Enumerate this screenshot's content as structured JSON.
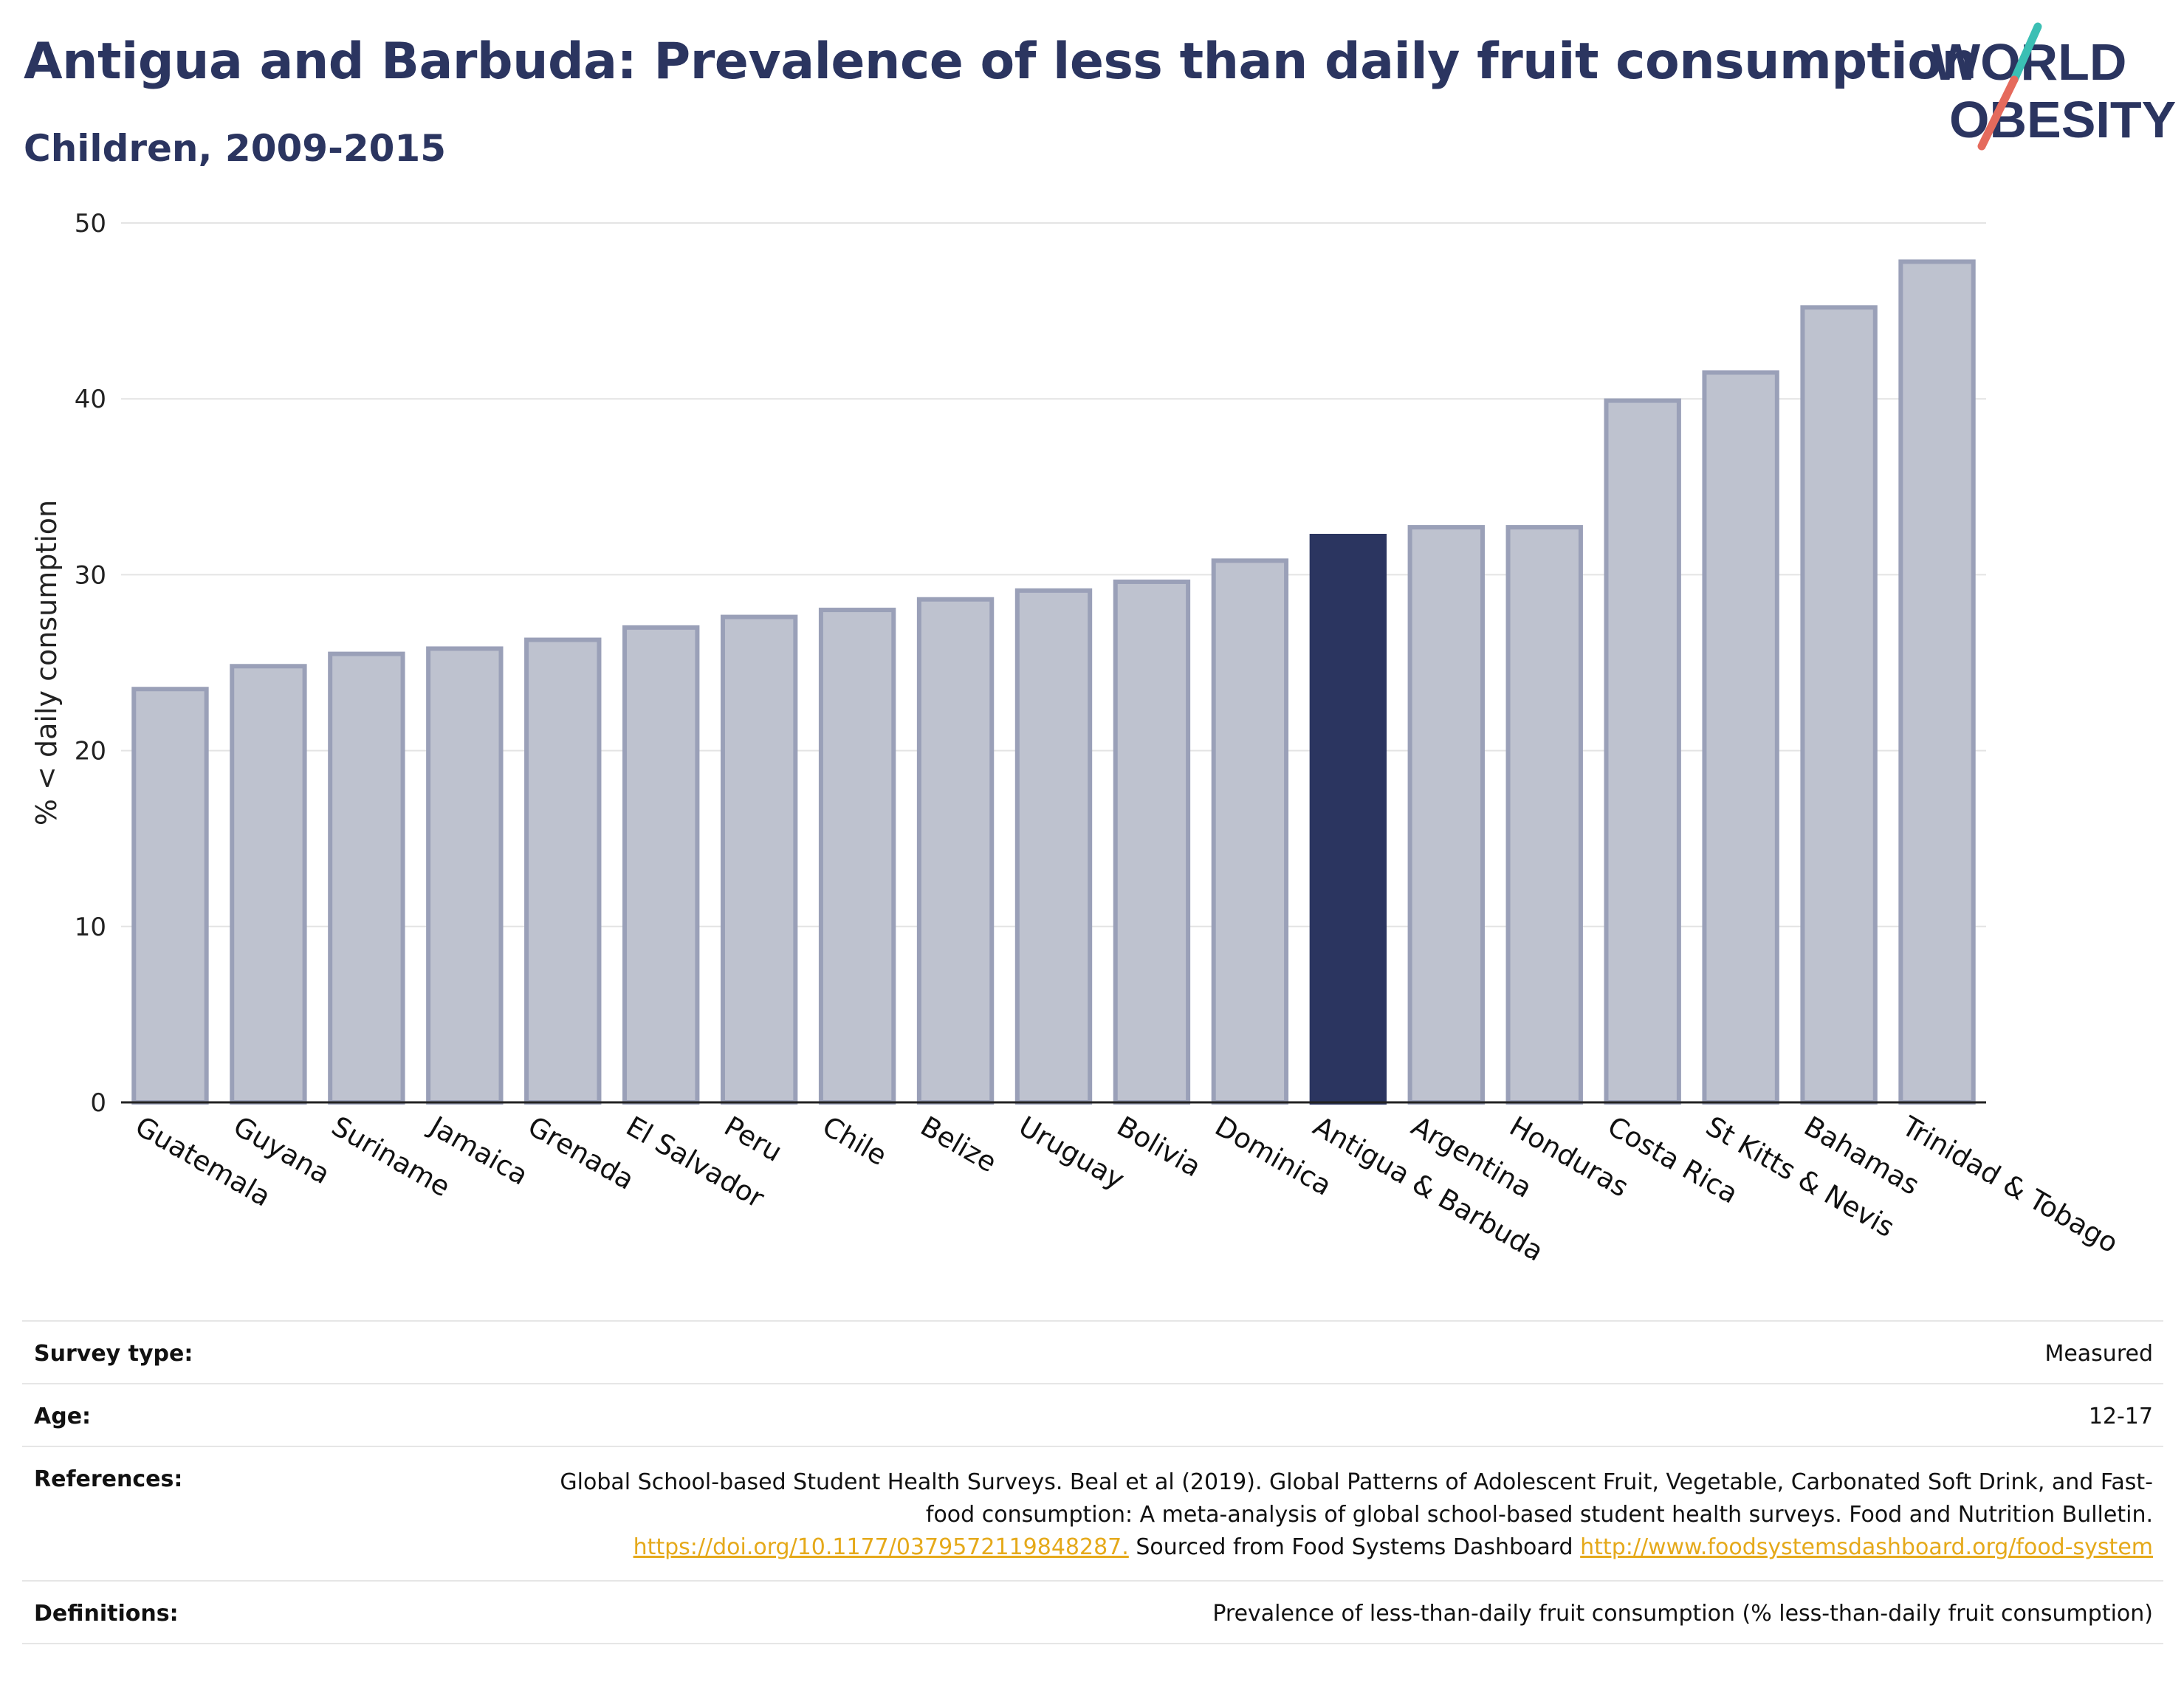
{
  "header": {
    "title": "Antigua and Barbuda: Prevalence of less than daily fruit consumption",
    "subtitle": "Children, 2009-2015"
  },
  "logo": {
    "line1": "WORLD",
    "line2": "OBESITY",
    "colors": {
      "text": "#2b3560",
      "teal": "#3bbfb4",
      "coral": "#e56a5c"
    }
  },
  "chart_data": {
    "type": "bar",
    "ylabel": "% < daily consumption",
    "ylim": [
      0,
      50
    ],
    "yticks": [
      0,
      10,
      20,
      30,
      40,
      50
    ],
    "grid": true,
    "categories": [
      "Guatemala",
      "Guyana",
      "Suriname",
      "Jamaica",
      "Grenada",
      "El Salvador",
      "Peru",
      "Chile",
      "Belize",
      "Uruguay",
      "Bolivia",
      "Dominica",
      "Antigua & Barbuda",
      "Argentina",
      "Honduras",
      "Costa Rica",
      "St Kitts & Nevis",
      "Bahamas",
      "Trinidad & Tobago"
    ],
    "values": [
      23.5,
      24.8,
      25.5,
      25.8,
      26.3,
      27.0,
      27.6,
      28.0,
      28.6,
      29.1,
      29.6,
      30.8,
      32.2,
      32.7,
      32.7,
      39.9,
      41.5,
      45.2,
      47.8
    ],
    "highlight": "Antigua & Barbuda",
    "colors": {
      "bar": "#bec2cf",
      "bar_edge": "#9aa0b8",
      "highlight": "#2b3560"
    }
  },
  "info": {
    "survey_type": {
      "label": "Survey type:",
      "value": "Measured"
    },
    "age": {
      "label": "Age:",
      "value": "12-17"
    },
    "references": {
      "label": "References:",
      "text1": "Global School-based Student Health Surveys. Beal et al (2019). Global Patterns of Adolescent Fruit, Vegetable, Carbonated Soft Drink, and Fast-food consumption: A meta-analysis of global school-based student health surveys. Food and Nutrition Bulletin.",
      "link1": "https://doi.org/10.1177/0379572119848287.",
      "text2": "Sourced from Food Systems Dashboard",
      "link2": "http://www.foodsystemsdashboard.org/food-system"
    },
    "definitions": {
      "label": "Definitions:",
      "value": "Prevalence of less-than-daily fruit consumption (% less-than-daily fruit consumption)"
    }
  }
}
